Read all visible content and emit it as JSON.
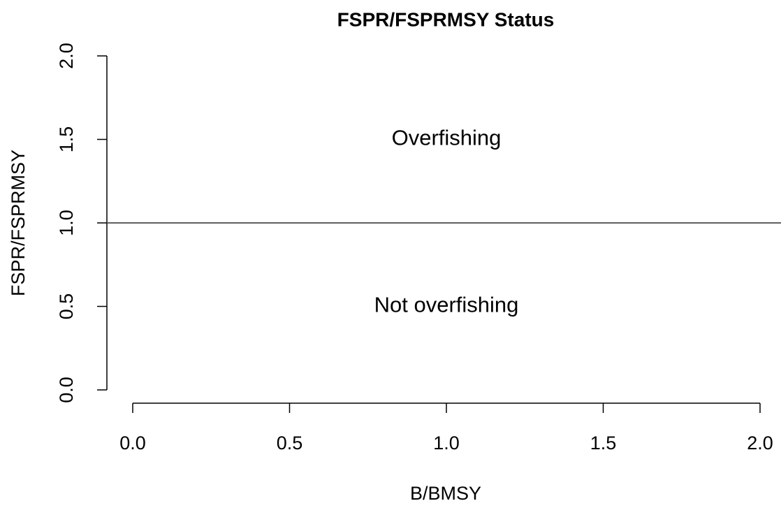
{
  "chart_data": {
    "type": "scatter",
    "title": "FSPR/FSPRMSY Status",
    "xlabel": "B/BMSY",
    "ylabel": "FSPR/FSPRMSY",
    "xlim": [
      0,
      2
    ],
    "ylim": [
      0,
      2
    ],
    "xticks": [
      {
        "value": 0,
        "label": "0.0"
      },
      0.5,
      {
        "value": 1,
        "label": "1.0"
      },
      1.5,
      {
        "value": 2,
        "label": "2.0"
      }
    ],
    "yticks": [
      {
        "value": 0,
        "label": "0.0"
      },
      0.5,
      {
        "value": 1,
        "label": "1.0"
      },
      1.5,
      {
        "value": 2,
        "label": "2.0"
      }
    ],
    "hlines": [
      1
    ],
    "annotations": [
      {
        "text": "Overfishing",
        "x": 1,
        "y": 1.5
      },
      {
        "text": "Not overfishing",
        "x": 1,
        "y": 0.5
      }
    ],
    "series": []
  }
}
